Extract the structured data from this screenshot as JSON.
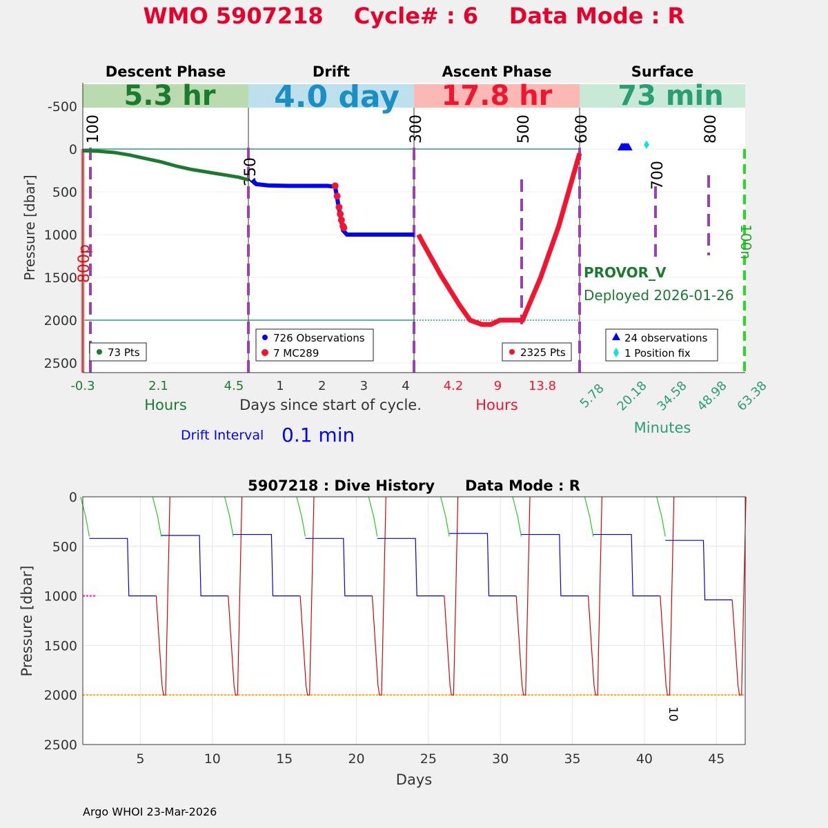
{
  "title": {
    "wmo": "WMO 5907218",
    "cycle": "Cycle# : 6",
    "mode": "Data Mode : R"
  },
  "colors": {
    "title": "#e8002a",
    "descent": "#1a7a2e",
    "drift": "#0000ff",
    "ascent": "#f21530",
    "surface": "#2a9d73",
    "marker": "#9b3fb5",
    "reference_line": "#2a9d73"
  },
  "top_chart": {
    "ylabel": "Pressure [dbar]",
    "yticks": [
      "-500",
      "0",
      "500",
      "1000",
      "1500",
      "2000",
      "2500"
    ],
    "phases": [
      {
        "name": "Descent Phase",
        "duration": "5.3 hr",
        "band": "#b9dbaf",
        "text": "#1a7a2e"
      },
      {
        "name": "Drift",
        "duration": "4.0 day",
        "band": "#bde0ec",
        "text": "#1a8fc4"
      },
      {
        "name": "Ascent Phase",
        "duration": "17.8 hr",
        "band": "#fbb8b4",
        "text": "#f21530"
      },
      {
        "name": "Surface",
        "duration": "73 min",
        "band": "#c7e9d6",
        "text": "#2a9d73"
      }
    ],
    "descent_ticks": [
      "-0.3",
      "2.1",
      "4.5"
    ],
    "drift_ticks": [
      "1",
      "2",
      "3",
      "4"
    ],
    "ascent_ticks": [
      "4.2",
      "9",
      "13.8"
    ],
    "surface_ticks": [
      "5.78",
      "20.18",
      "34.58",
      "48.98",
      "63.38"
    ],
    "xlabels": {
      "descent": "Hours",
      "drift": "Days since start of cycle.",
      "ascent": "Hours",
      "surface": "Minutes"
    },
    "markers": [
      {
        "label": "100",
        "pressure": 0
      },
      {
        "label": "250",
        "pressure": 300
      },
      {
        "label": "300",
        "pressure": 0
      },
      {
        "label": "500",
        "pressure": 0
      },
      {
        "label": "600",
        "pressure": 0
      },
      {
        "label": "700",
        "pressure": 250
      },
      {
        "label": "800",
        "pressure": 0
      }
    ],
    "side_labels": {
      "left": "800p",
      "right": "100n"
    },
    "legends": {
      "descent": "73 Pts",
      "drift_obs": "726 Observations",
      "drift_mc": "7 MC289",
      "ascent": "2325 Pts",
      "surface_obs": "24 observations",
      "surface_fix": "1 Position fix"
    },
    "float_type": "PROVOR_V",
    "deployed": "Deployed 2026-01-26",
    "drift_interval_label": "Drift Interval",
    "drift_interval_value": "0.1 min"
  },
  "chart_data": [
    {
      "type": "line",
      "title": "Descent Phase",
      "xlabel": "Hours",
      "ylabel": "Pressure [dbar]",
      "ylim": [
        -800,
        2600
      ],
      "series": [
        {
          "name": "73 Pts",
          "x": [
            -0.5,
            0,
            0.5,
            1,
            1.5,
            2,
            2.5,
            3,
            3.5,
            4,
            4.5,
            4.8
          ],
          "y": [
            20,
            25,
            40,
            70,
            110,
            150,
            200,
            240,
            270,
            300,
            330,
            360
          ]
        }
      ]
    },
    {
      "type": "scatter",
      "title": "Drift",
      "xlabel": "Days since start of cycle.",
      "ylim": [
        -800,
        2600
      ],
      "series": [
        {
          "name": "726 Observations",
          "x": [
            0.1,
            0.2,
            0.5,
            1,
            1.5,
            2,
            2.2,
            2.3,
            2.4,
            2.5,
            3,
            3.5,
            4,
            4.2
          ],
          "y": [
            360,
            410,
            425,
            430,
            430,
            430,
            440,
            700,
            950,
            1000,
            1000,
            1000,
            1000,
            1000
          ]
        },
        {
          "name": "7 MC289",
          "x": [
            2.2,
            2.25,
            2.3,
            2.33,
            2.36,
            2.4,
            2.42
          ],
          "y": [
            430,
            550,
            680,
            760,
            830,
            900,
            920
          ]
        }
      ]
    },
    {
      "type": "line",
      "title": "Ascent Phase",
      "xlabel": "Hours",
      "ylim": [
        -800,
        2600
      ],
      "series": [
        {
          "name": "2325 Pts",
          "x": [
            0.5,
            1,
            3,
            5,
            6.2,
            7.5,
            8.5,
            9.5,
            10.5,
            11.5,
            12,
            14,
            16,
            18.3
          ],
          "y": [
            1000,
            1100,
            1480,
            1820,
            2000,
            2050,
            2050,
            2000,
            2000,
            2000,
            2000,
            1500,
            900,
            50
          ]
        }
      ]
    },
    {
      "type": "scatter",
      "title": "Surface",
      "xlabel": "Minutes",
      "ylim": [
        -800,
        2600
      ],
      "series": [
        {
          "name": "24 observations",
          "x": [
            18.5,
            19,
            19.5,
            20,
            20.5,
            21,
            21.5
          ],
          "y": [
            0,
            0,
            0,
            0,
            0,
            0,
            0
          ]
        },
        {
          "name": "1 Position fix",
          "x": [
            29.5
          ],
          "y": [
            -50
          ]
        }
      ]
    },
    {
      "type": "line",
      "title": "5907218 : Dive History      Data Mode : R",
      "xlabel": "Days",
      "ylabel": "Pressure [dbar]",
      "xlim": [
        1,
        47
      ],
      "ylim": [
        0,
        2500
      ],
      "xticks": [
        5,
        10,
        15,
        20,
        25,
        30,
        35,
        40,
        45
      ],
      "yticks": [
        0,
        500,
        1000,
        1500,
        2000,
        2500
      ],
      "grid": true,
      "reference_line": 2000,
      "annotation": {
        "text": "10",
        "x": 42.2,
        "y": 2150
      },
      "cycles": [
        {
          "start": 1.0,
          "drift_upper": 420,
          "drift_lower": 1000
        },
        {
          "start": 6.0,
          "drift_upper": 390,
          "drift_lower": 1000
        },
        {
          "start": 11.0,
          "drift_upper": 380,
          "drift_lower": 1000
        },
        {
          "start": 16.0,
          "drift_upper": 420,
          "drift_lower": 1000
        },
        {
          "start": 21.0,
          "drift_upper": 420,
          "drift_lower": 1000
        },
        {
          "start": 26.0,
          "drift_upper": 370,
          "drift_lower": 1000
        },
        {
          "start": 31.0,
          "drift_upper": 380,
          "drift_lower": 1000
        },
        {
          "start": 36.0,
          "drift_upper": 380,
          "drift_lower": 1000
        },
        {
          "start": 41.0,
          "drift_upper": 440,
          "drift_lower": 1040
        }
      ]
    }
  ],
  "bottom_chart": {
    "title": "5907218 : Dive History      Data Mode : R",
    "ylabel": "Pressure [dbar]",
    "xlabel": "Days",
    "xticks": [
      "5",
      "10",
      "15",
      "20",
      "25",
      "30",
      "35",
      "40",
      "45"
    ],
    "yticks": [
      "0",
      "500",
      "1000",
      "1500",
      "2000",
      "2500"
    ],
    "annotation": "10"
  },
  "footer": "Argo WHOI 23-Mar-2026"
}
